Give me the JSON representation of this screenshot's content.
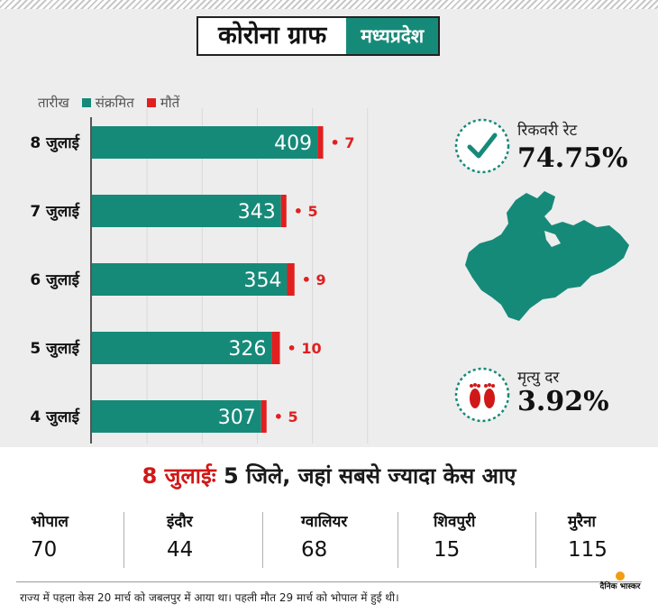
{
  "title": "कोरोना ग्राफ",
  "state": "मध्यप्रदेश",
  "legend": {
    "date_label": "तारीख",
    "infected": "संक्रमित",
    "deaths": "मौतें"
  },
  "colors": {
    "infected": "#168a79",
    "deaths": "#e02020",
    "accent": "#d01818"
  },
  "chart_data": {
    "type": "bar",
    "orientation": "horizontal",
    "stacked": true,
    "categories": [
      "8 जुलाई",
      "7 जुलाई",
      "6 जुलाई",
      "5 जुलाई",
      "4 जुलाई"
    ],
    "series": [
      {
        "name": "संक्रमित",
        "values": [
          409,
          343,
          354,
          326,
          307
        ]
      },
      {
        "name": "मौतें",
        "values": [
          7,
          5,
          9,
          10,
          5
        ]
      }
    ],
    "xlim": [
      0,
      520
    ],
    "grid": true,
    "legend_position": "top-left"
  },
  "recovery": {
    "label": "रिकवरी रेट",
    "value": "74.75%"
  },
  "mortality": {
    "label": "मृत्यु दर",
    "value": "3.92%"
  },
  "headline": {
    "date": "8 जुलाईः",
    "text": "5 जिले, जहां सबसे ज्यादा केस आए"
  },
  "districts": [
    {
      "name": "भोपाल",
      "count": "70"
    },
    {
      "name": "इंदौर",
      "count": "44"
    },
    {
      "name": "ग्वालियर",
      "count": "68"
    },
    {
      "name": "शिवपुरी",
      "count": "15"
    },
    {
      "name": "मुरैना",
      "count": "115"
    }
  ],
  "footnote": "राज्य में पहला केस 20 मार्च को जबलपुर में आया था। पहली मौत 29 मार्च को भोपाल में हुई थी।",
  "brand": "दैनिक भास्कर"
}
